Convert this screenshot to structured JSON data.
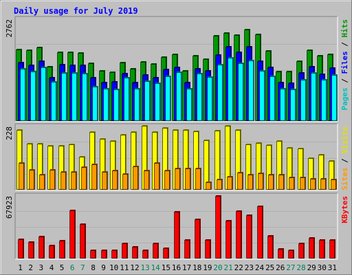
{
  "chart_data": {
    "type": "bar",
    "title": "Daily usage for July 2019",
    "days": [
      1,
      2,
      3,
      4,
      5,
      6,
      7,
      8,
      9,
      10,
      11,
      12,
      13,
      14,
      15,
      16,
      17,
      18,
      19,
      20,
      21,
      22,
      23,
      24,
      25,
      26,
      27,
      28,
      29,
      30,
      31
    ],
    "weekend_days": [
      6,
      7,
      13,
      14,
      20,
      21,
      27,
      28
    ],
    "colors": {
      "hits": "#009900",
      "files": "#0000ff",
      "pages": "#00ffff",
      "visits": "#ffff00",
      "sites": "#ff9900",
      "kbytes": "#ff0000",
      "weekday_label": "#000000",
      "weekend_label": "#00805c",
      "title": "#0000ff"
    },
    "panels": [
      {
        "id": "top",
        "scale_max": "2762",
        "legend": [
          {
            "text": "Pages",
            "color": "#00c0c0"
          },
          {
            "text": " / ",
            "color": "#000000"
          },
          {
            "text": "Files",
            "color": "#0000ff"
          },
          {
            "text": " / ",
            "color": "#000000"
          },
          {
            "text": "Hits",
            "color": "#009900"
          }
        ],
        "ylim": [
          0,
          2762
        ],
        "series": [
          {
            "name": "Hits",
            "values": [
              1930,
              1905,
              1980,
              1460,
              1850,
              1850,
              1835,
              1555,
              1345,
              1325,
              1575,
              1410,
              1585,
              1545,
              1725,
              1800,
              1345,
              1770,
              1665,
              2290,
              2380,
              2320,
              2460,
              2340,
              1885,
              1340,
              1340,
              1620,
              1905,
              1760,
              1795
            ]
          },
          {
            "name": "Files",
            "values": [
              1570,
              1500,
              1620,
              1170,
              1520,
              1510,
              1500,
              1170,
              1030,
              1050,
              1280,
              1040,
              1250,
              1160,
              1390,
              1450,
              1030,
              1400,
              1350,
              1780,
              2000,
              1860,
              2000,
              1620,
              1450,
              1040,
              1020,
              1300,
              1460,
              1260,
              1420
            ]
          },
          {
            "name": "Pages",
            "values": [
              1410,
              1330,
              1440,
              1050,
              1290,
              1300,
              1280,
              930,
              870,
              860,
              1170,
              870,
              1080,
              1020,
              1210,
              1320,
              880,
              1270,
              1180,
              1520,
              1700,
              1550,
              1640,
              1350,
              1210,
              880,
              860,
              1120,
              1290,
              1110,
              1240
            ]
          }
        ]
      },
      {
        "id": "middle",
        "scale_max": "228",
        "legend": [
          {
            "text": "Sites",
            "color": "#ff9900"
          },
          {
            "text": " / ",
            "color": "#000000"
          },
          {
            "text": "Visits",
            "color": "#e0e000"
          }
        ],
        "ylim": [
          0,
          228
        ],
        "series": [
          {
            "name": "Visits",
            "values": [
              213,
              164,
              164,
              158,
              156,
              162,
              117,
              205,
              181,
              173,
              195,
              206,
              227,
              205,
              221,
              214,
              214,
              208,
              176,
              210,
              227,
              214,
              163,
              166,
              160,
              174,
              150,
              148,
              112,
              126,
              103
            ]
          },
          {
            "name": "Sites",
            "values": [
              96,
              70,
              54,
              70,
              64,
              64,
              82,
              90,
              64,
              69,
              57,
              83,
              69,
              96,
              68,
              77,
              77,
              77,
              26,
              38,
              47,
              61,
              53,
              60,
              55,
              55,
              44,
              45,
              39,
              39,
              38
            ]
          }
        ]
      },
      {
        "id": "bottom",
        "scale_max": "67923",
        "legend": [
          {
            "text": "KBytes",
            "color": "#ff0000"
          }
        ],
        "ylim": [
          0,
          67923
        ],
        "series": [
          {
            "name": "KBytes",
            "values": [
              21000,
              17600,
              23400,
              14000,
              19200,
              51500,
              37000,
              9000,
              9200,
              9000,
              16300,
              12200,
              9000,
              16300,
              11000,
              50500,
              19800,
              42400,
              20000,
              67000,
              40500,
              51000,
              46500,
              56000,
              24000,
              10000,
              9000,
              15900,
              21800,
              20200,
              19600
            ]
          }
        ]
      }
    ]
  }
}
